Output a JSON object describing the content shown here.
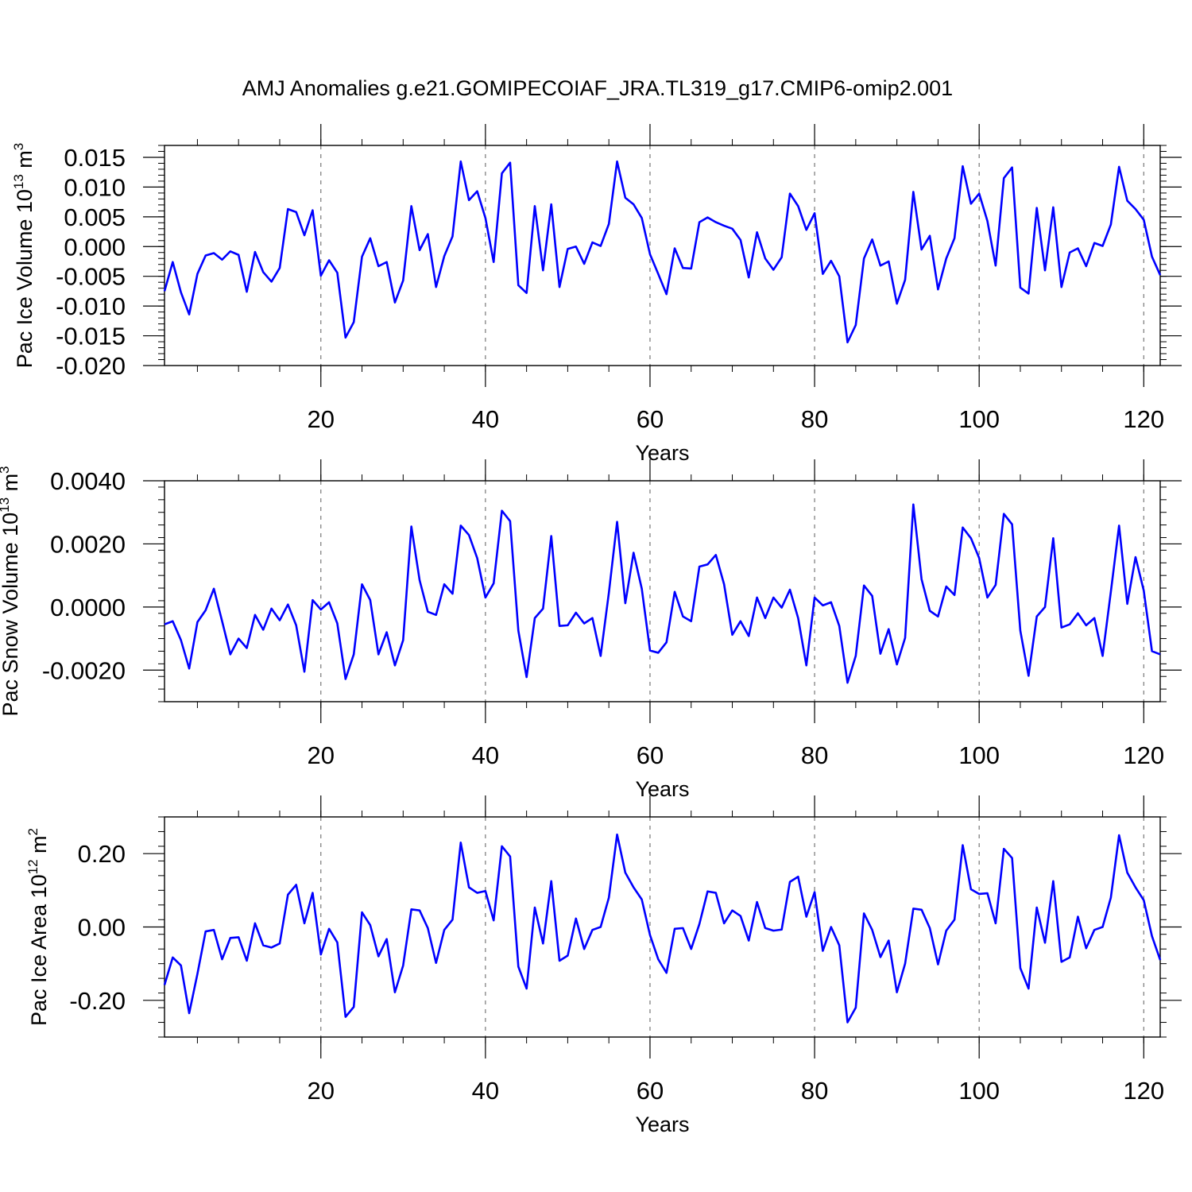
{
  "title": "AMJ Anomalies g.e21.GOMIPECOIAF_JRA.TL319_g17.CMIP6-omip2.001",
  "line_color": "#0000ff",
  "chart_data": [
    {
      "type": "line",
      "xlabel": "Years",
      "ylabel": {
        "main": "Pac Ice Volume 10",
        "exp": "13",
        "unit": " m",
        "unit_exp": "3"
      },
      "xlim": [
        1,
        122
      ],
      "ylim": [
        -0.02,
        0.017
      ],
      "x_ticks": [
        20,
        40,
        60,
        80,
        100,
        120
      ],
      "x_tick_labels": [
        "20",
        "40",
        "60",
        "80",
        "100",
        "120"
      ],
      "y_ticks": [
        -0.02,
        -0.015,
        -0.01,
        -0.005,
        0.0,
        0.005,
        0.01,
        0.015
      ],
      "y_tick_labels": [
        "-0.020",
        "-0.015",
        "-0.010",
        "-0.005",
        "0.000",
        "0.005",
        "0.010",
        "0.015"
      ],
      "vertical_reference_lines": [
        20,
        40,
        60,
        80,
        100,
        120
      ],
      "x": [
        1,
        2,
        3,
        4,
        5,
        6,
        7,
        8,
        9,
        10,
        11,
        12,
        13,
        14,
        15,
        16,
        17,
        18,
        19,
        20,
        21,
        22,
        23,
        24,
        25,
        26,
        27,
        28,
        29,
        30,
        31,
        32,
        33,
        34,
        35,
        36,
        37,
        38,
        39,
        40,
        41,
        42,
        43,
        44,
        45,
        46,
        47,
        48,
        49,
        50,
        51,
        52,
        53,
        54,
        55,
        56,
        57,
        58,
        59,
        60,
        61,
        62,
        63,
        64,
        65,
        66,
        67,
        68,
        69,
        70,
        71,
        72,
        73,
        74,
        75,
        76,
        77,
        78,
        79,
        80,
        81,
        82,
        83,
        84,
        85,
        86,
        87,
        88,
        89,
        90,
        91,
        92,
        93,
        94,
        95,
        96,
        97,
        98,
        99,
        100,
        101,
        102,
        103,
        104,
        105,
        106,
        107,
        108,
        109,
        110,
        111,
        112,
        113,
        114,
        115,
        116,
        117,
        118,
        119,
        120,
        121,
        122
      ],
      "y": [
        -0.0075,
        -0.0026,
        -0.0077,
        -0.0114,
        -0.0046,
        -0.0015,
        -0.0011,
        -0.0022,
        -0.0008,
        -0.0014,
        -0.0076,
        -0.0009,
        -0.0043,
        -0.0059,
        -0.0036,
        0.0063,
        0.0058,
        0.0019,
        0.0061,
        -0.0049,
        -0.0023,
        -0.0044,
        -0.0153,
        -0.0127,
        -0.0017,
        0.0014,
        -0.0033,
        -0.0026,
        -0.0094,
        -0.0057,
        0.0068,
        -0.0006,
        0.0021,
        -0.0068,
        -0.0016,
        0.0017,
        0.0143,
        0.0078,
        0.0093,
        0.0048,
        -0.0026,
        0.0123,
        0.0141,
        -0.0065,
        -0.0078,
        0.0068,
        -0.004,
        0.0071,
        -0.0068,
        -0.0004,
        0.0,
        -0.0029,
        0.0007,
        0.0001,
        0.0038,
        0.0143,
        0.0082,
        0.0071,
        0.0048,
        -0.0013,
        -0.0046,
        -0.008,
        -0.0003,
        -0.0036,
        -0.0037,
        0.0041,
        0.0049,
        0.0041,
        0.0035,
        0.003,
        0.0011,
        -0.0052,
        0.0024,
        -0.002,
        -0.0039,
        -0.0018,
        0.0089,
        0.0068,
        0.0028,
        0.0056,
        -0.0046,
        -0.0024,
        -0.005,
        -0.0161,
        -0.0132,
        -0.002,
        0.0012,
        -0.0032,
        -0.0025,
        -0.0096,
        -0.0056,
        0.0092,
        -0.0005,
        0.0018,
        -0.0072,
        -0.002,
        0.0014,
        0.0135,
        0.0072,
        0.0089,
        0.0043,
        -0.0032,
        0.0115,
        0.0133,
        -0.0069,
        -0.0079,
        0.0065,
        -0.004,
        0.0066,
        -0.0068,
        -0.001,
        -0.0003,
        -0.0033,
        0.0006,
        0.0001,
        0.0037,
        0.0134,
        0.0077,
        0.0063,
        0.0045,
        -0.0017,
        -0.0048
      ]
    },
    {
      "type": "line",
      "xlabel": "Years",
      "ylabel": {
        "main": "Pac Snow Volume 10",
        "exp": "13",
        "unit": " m",
        "unit_exp": "3"
      },
      "xlim": [
        1,
        122
      ],
      "ylim": [
        -0.003,
        0.004
      ],
      "x_ticks": [
        20,
        40,
        60,
        80,
        100,
        120
      ],
      "x_tick_labels": [
        "20",
        "40",
        "60",
        "80",
        "100",
        "120"
      ],
      "y_ticks": [
        -0.002,
        0.0,
        0.002,
        0.004
      ],
      "y_tick_labels": [
        "-0.0020",
        "0.0000",
        "0.0020",
        "0.0040"
      ],
      "vertical_reference_lines": [
        20,
        40,
        60,
        80,
        100,
        120
      ],
      "x": [
        1,
        2,
        3,
        4,
        5,
        6,
        7,
        8,
        9,
        10,
        11,
        12,
        13,
        14,
        15,
        16,
        17,
        18,
        19,
        20,
        21,
        22,
        23,
        24,
        25,
        26,
        27,
        28,
        29,
        30,
        31,
        32,
        33,
        34,
        35,
        36,
        37,
        38,
        39,
        40,
        41,
        42,
        43,
        44,
        45,
        46,
        47,
        48,
        49,
        50,
        51,
        52,
        53,
        54,
        55,
        56,
        57,
        58,
        59,
        60,
        61,
        62,
        63,
        64,
        65,
        66,
        67,
        68,
        69,
        70,
        71,
        72,
        73,
        74,
        75,
        76,
        77,
        78,
        79,
        80,
        81,
        82,
        83,
        84,
        85,
        86,
        87,
        88,
        89,
        90,
        91,
        92,
        93,
        94,
        95,
        96,
        97,
        98,
        99,
        100,
        101,
        102,
        103,
        104,
        105,
        106,
        107,
        108,
        109,
        110,
        111,
        112,
        113,
        114,
        115,
        116,
        117,
        118,
        119,
        120,
        121,
        122
      ],
      "y": [
        -0.00055,
        -0.00045,
        -0.00105,
        -0.00195,
        -0.00048,
        -0.0001,
        0.00058,
        -0.00045,
        -0.0015,
        -0.001,
        -0.0013,
        -0.00025,
        -0.00072,
        -5e-05,
        -0.00042,
        8e-05,
        -0.00058,
        -0.00205,
        0.00022,
        -8e-05,
        0.00015,
        -0.00052,
        -0.00228,
        -0.0015,
        0.00072,
        0.00022,
        -0.0015,
        -0.0008,
        -0.00185,
        -0.00105,
        0.00255,
        0.00085,
        -0.00015,
        -0.00025,
        0.00072,
        0.00042,
        0.00258,
        0.00228,
        0.00155,
        0.0003,
        0.00075,
        0.00305,
        0.00272,
        -0.00075,
        -0.00222,
        -0.00035,
        -5e-05,
        0.00225,
        -0.0006,
        -0.00058,
        -0.00018,
        -0.00052,
        -0.00035,
        -0.00155,
        0.00045,
        0.0027,
        0.00012,
        0.00172,
        0.00058,
        -0.00138,
        -0.00145,
        -0.00112,
        0.00048,
        -0.0003,
        -0.00045,
        0.00128,
        0.00135,
        0.00165,
        0.00072,
        -0.00088,
        -0.00045,
        -0.00092,
        0.0003,
        -0.00035,
        0.0003,
        -2e-05,
        0.00055,
        -0.00035,
        -0.00185,
        0.0003,
        5e-05,
        0.00015,
        -0.0006,
        -0.0024,
        -0.00155,
        0.00068,
        0.00035,
        -0.00148,
        -0.0007,
        -0.00182,
        -0.00098,
        0.00325,
        0.00088,
        -0.00012,
        -0.0003,
        0.00065,
        0.00038,
        0.00252,
        0.00218,
        0.00155,
        0.0003,
        0.0007,
        0.00295,
        0.00262,
        -0.00075,
        -0.00218,
        -0.0003,
        0.0,
        0.00218,
        -0.00065,
        -0.00055,
        -0.0002,
        -0.00058,
        -0.00035,
        -0.00155,
        0.00048,
        0.00258,
        0.0001,
        0.00158,
        0.00052,
        -0.0014,
        -0.0015
      ]
    },
    {
      "type": "line",
      "xlabel": "Years",
      "ylabel": {
        "main": "Pac Ice Area 10",
        "exp": "12",
        "unit": " m",
        "unit_exp": "2"
      },
      "xlim": [
        1,
        122
      ],
      "ylim": [
        -0.3,
        0.3
      ],
      "x_ticks": [
        20,
        40,
        60,
        80,
        100,
        120
      ],
      "x_tick_labels": [
        "20",
        "40",
        "60",
        "80",
        "100",
        "120"
      ],
      "y_ticks": [
        -0.2,
        0.0,
        0.2
      ],
      "y_tick_labels": [
        "-0.20",
        "0.00",
        "0.20"
      ],
      "vertical_reference_lines": [
        20,
        40,
        60,
        80,
        100,
        120
      ],
      "x": [
        1,
        2,
        3,
        4,
        5,
        6,
        7,
        8,
        9,
        10,
        11,
        12,
        13,
        14,
        15,
        16,
        17,
        18,
        19,
        20,
        21,
        22,
        23,
        24,
        25,
        26,
        27,
        28,
        29,
        30,
        31,
        32,
        33,
        34,
        35,
        36,
        37,
        38,
        39,
        40,
        41,
        42,
        43,
        44,
        45,
        46,
        47,
        48,
        49,
        50,
        51,
        52,
        53,
        54,
        55,
        56,
        57,
        58,
        59,
        60,
        61,
        62,
        63,
        64,
        65,
        66,
        67,
        68,
        69,
        70,
        71,
        72,
        73,
        74,
        75,
        76,
        77,
        78,
        79,
        80,
        81,
        82,
        83,
        84,
        85,
        86,
        87,
        88,
        89,
        90,
        91,
        92,
        93,
        94,
        95,
        96,
        97,
        98,
        99,
        100,
        101,
        102,
        103,
        104,
        105,
        106,
        107,
        108,
        109,
        110,
        111,
        112,
        113,
        114,
        115,
        116,
        117,
        118,
        119,
        120,
        121,
        122
      ],
      "y": [
        -0.158,
        -0.083,
        -0.105,
        -0.235,
        -0.128,
        -0.012,
        -0.008,
        -0.088,
        -0.03,
        -0.028,
        -0.092,
        0.01,
        -0.05,
        -0.056,
        -0.045,
        0.088,
        0.115,
        0.01,
        0.093,
        -0.075,
        -0.005,
        -0.042,
        -0.245,
        -0.218,
        0.04,
        0.005,
        -0.08,
        -0.033,
        -0.178,
        -0.105,
        0.048,
        0.045,
        -0.003,
        -0.098,
        -0.008,
        0.02,
        0.23,
        0.108,
        0.093,
        0.098,
        0.018,
        0.22,
        0.192,
        -0.108,
        -0.168,
        0.053,
        -0.045,
        0.125,
        -0.092,
        -0.078,
        0.023,
        -0.06,
        -0.008,
        0.0,
        0.08,
        0.252,
        0.148,
        0.108,
        0.075,
        -0.022,
        -0.088,
        -0.125,
        -0.005,
        -0.003,
        -0.06,
        0.008,
        0.097,
        0.093,
        0.01,
        0.045,
        0.03,
        -0.037,
        0.068,
        -0.003,
        -0.01,
        -0.007,
        0.123,
        0.137,
        0.028,
        0.095,
        -0.065,
        0.0,
        -0.05,
        -0.26,
        -0.22,
        0.037,
        -0.008,
        -0.082,
        -0.037,
        -0.178,
        -0.1,
        0.05,
        0.047,
        -0.003,
        -0.102,
        -0.01,
        0.02,
        0.223,
        0.103,
        0.09,
        0.092,
        0.01,
        0.213,
        0.188,
        -0.112,
        -0.168,
        0.053,
        -0.043,
        0.125,
        -0.095,
        -0.083,
        0.028,
        -0.058,
        -0.008,
        0.0,
        0.08,
        0.25,
        0.148,
        0.108,
        0.073,
        -0.025,
        -0.09
      ]
    }
  ]
}
